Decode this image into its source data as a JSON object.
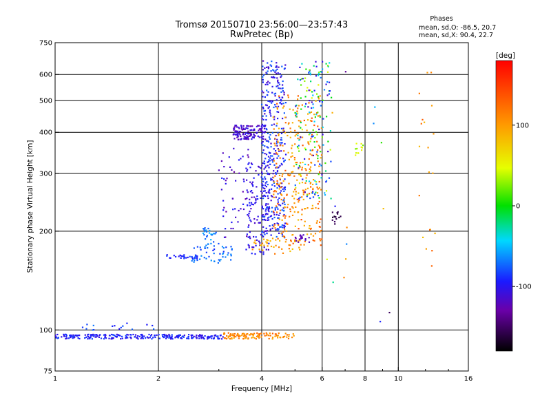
{
  "chart_data": {
    "type": "scatter",
    "title": "Tromsø 20150710 23:56:00—23:57:43",
    "subtitle": "RwPretec (Bp)",
    "xlabel": "Frequency [MHz]",
    "ylabel": "Stationary phase Virtual Height [km]",
    "xscale": "log",
    "yscale": "log",
    "xlim": [
      1,
      16
    ],
    "ylim": [
      75,
      750
    ],
    "x_ticks": [
      1,
      2,
      4,
      6,
      8,
      10,
      16
    ],
    "x_tick_labels": [
      "1",
      "2",
      "4",
      "6",
      "8",
      "10",
      "16"
    ],
    "x_gridlines": [
      2,
      4,
      6,
      8,
      10
    ],
    "y_ticks": [
      75,
      100,
      200,
      300,
      400,
      500,
      600,
      750
    ],
    "y_tick_labels": [
      "75",
      "100",
      "200",
      "300",
      "400",
      "500",
      "600",
      "750"
    ],
    "y_gridlines": [
      100,
      200,
      300,
      400,
      500,
      600
    ],
    "grid": true,
    "phase_legend": {
      "heading": "Phases",
      "line_O": "mean, sd,O: -86.5, 20.7",
      "line_X": "mean, sd,X:  90.4, 22.7"
    },
    "colorbar": {
      "label": "[deg]",
      "range": [
        -180,
        180
      ],
      "ticks": [
        100,
        0,
        -100
      ],
      "tick_labels": [
        "100",
        "0",
        "-100"
      ],
      "colormap": "rainbow"
    },
    "series": [
      {
        "x_range": [
          1.0,
          3.1
        ],
        "y_range": [
          94,
          97
        ],
        "phase_range": [
          -110,
          -80
        ],
        "n": 260
      },
      {
        "x_range": [
          3.1,
          5.0
        ],
        "y_range": [
          94,
          98
        ],
        "phase_range": [
          90,
          130
        ],
        "n": 110
      },
      {
        "x_range": [
          1.2,
          2.0
        ],
        "y_range": [
          100,
          105
        ],
        "phase_range": [
          -100,
          -60
        ],
        "n": 16
      },
      {
        "x_range": [
          2.5,
          3.3
        ],
        "y_range": [
          160,
          180
        ],
        "phase_range": [
          -90,
          -60
        ],
        "n": 50
      },
      {
        "x_range": [
          2.1,
          2.6
        ],
        "y_range": [
          165,
          170
        ],
        "phase_range": [
          -100,
          -80
        ],
        "n": 26
      },
      {
        "x_range": [
          2.7,
          3.0
        ],
        "y_range": [
          180,
          205
        ],
        "phase_range": [
          -80,
          -50
        ],
        "n": 30
      },
      {
        "x_range": [
          3.0,
          3.8
        ],
        "y_range": [
          190,
          360
        ],
        "phase_range": [
          -130,
          -90
        ],
        "n": 60
      },
      {
        "x_range": [
          3.3,
          4.1
        ],
        "y_range": [
          380,
          420
        ],
        "phase_range": [
          -130,
          -100
        ],
        "n": 130
      },
      {
        "x_range": [
          3.6,
          4.2
        ],
        "y_range": [
          170,
          330
        ],
        "phase_range": [
          -120,
          -90
        ],
        "n": 110
      },
      {
        "x_range": [
          4.0,
          4.7
        ],
        "y_range": [
          190,
          660
        ],
        "phase_range": [
          -120,
          -70
        ],
        "n": 380
      },
      {
        "x_range": [
          4.3,
          6.0
        ],
        "y_range": [
          180,
          520
        ],
        "phase_range": [
          80,
          140
        ],
        "n": 300
      },
      {
        "x_range": [
          5.0,
          6.4
        ],
        "y_range": [
          250,
          660
        ],
        "phase_range": [
          -120,
          60
        ],
        "n": 170
      },
      {
        "x_range": [
          3.7,
          5.2
        ],
        "y_range": [
          170,
          190
        ],
        "phase_range": [
          80,
          120
        ],
        "n": 40
      },
      {
        "x_range": [
          5.0,
          5.5
        ],
        "y_range": [
          185,
          195
        ],
        "phase_range": [
          -130,
          -110
        ],
        "n": 16
      },
      {
        "x_range": [
          6.4,
          6.8
        ],
        "y_range": [
          210,
          230
        ],
        "phase_range": [
          -170,
          -150
        ],
        "n": 14
      },
      {
        "x_range": [
          7.5,
          7.9
        ],
        "y_range": [
          340,
          370
        ],
        "phase_range": [
          20,
          60
        ],
        "n": 12
      },
      {
        "x_range": [
          11.5,
          12.8
        ],
        "y_range": [
          140,
          650
        ],
        "phase_range": [
          80,
          140
        ],
        "n": 20
      },
      {
        "x_range": [
          6.0,
          9.5
        ],
        "y_range": [
          100,
          640
        ],
        "phase_range": [
          -170,
          130
        ],
        "n": 16
      }
    ]
  }
}
